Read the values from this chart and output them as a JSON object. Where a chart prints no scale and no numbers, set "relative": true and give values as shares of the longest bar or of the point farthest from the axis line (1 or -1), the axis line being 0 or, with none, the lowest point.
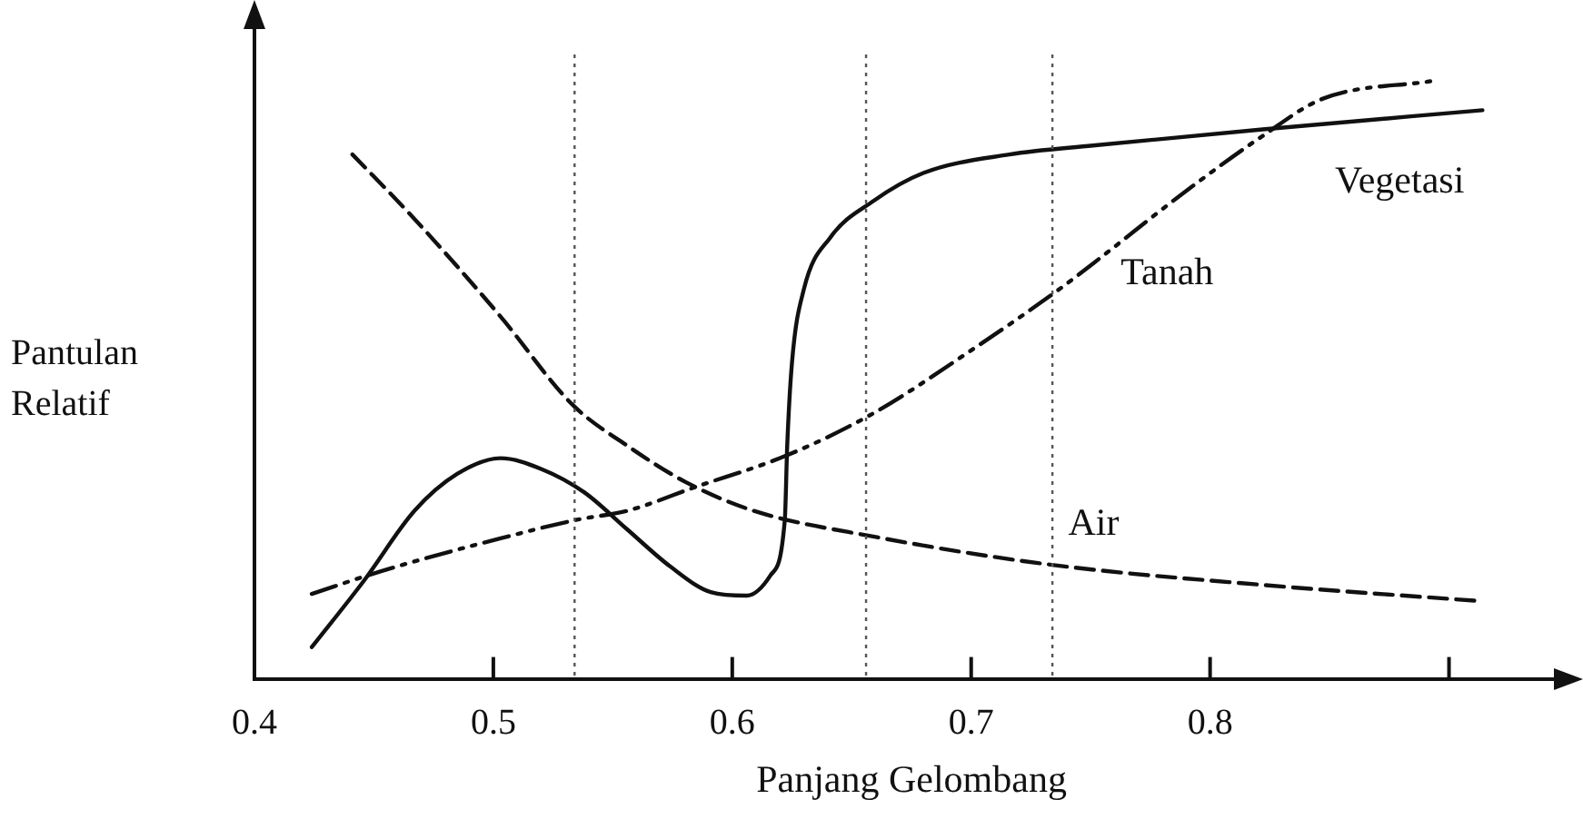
{
  "chart_data": {
    "type": "line",
    "relative": true,
    "xlabel": "Panjang Gelombang",
    "ylabel": "Pantulan Relatif",
    "xlim": [
      0.4,
      0.95
    ],
    "xticks": [
      0.4,
      0.5,
      0.6,
      0.7,
      0.8,
      {
        "value": 0.9,
        "label": null
      }
    ],
    "tick_labels": "x",
    "grid": false,
    "legend": false,
    "marker": "none",
    "ref_lines": [
      {
        "axis": "x",
        "value": 0.534,
        "color": "#555555",
        "line_style": "dotted"
      },
      {
        "axis": "x",
        "value": 0.656,
        "color": "#555555",
        "line_style": "dotted"
      },
      {
        "axis": "x",
        "value": 0.734,
        "color": "#555555",
        "line_style": "dotted"
      }
    ],
    "series": [
      {
        "name": "Vegetasi",
        "color": "#111111",
        "line_style": "solid",
        "x": [
          0.424,
          0.446,
          0.467,
          0.485,
          0.503,
          0.52,
          0.538,
          0.556,
          0.574,
          0.591,
          0.606,
          0.616,
          0.622,
          0.623,
          0.625,
          0.63,
          0.641,
          0.659,
          0.68,
          0.716,
          0.751,
          0.822,
          0.914
        ],
        "values": [
          0.053,
          0.165,
          0.281,
          0.343,
          0.369,
          0.351,
          0.312,
          0.25,
          0.188,
          0.145,
          0.139,
          0.173,
          0.266,
          0.39,
          0.529,
          0.652,
          0.738,
          0.799,
          0.846,
          0.877,
          0.892,
          0.919,
          0.951
        ]
      },
      {
        "name": "Tanah",
        "color": "#111111",
        "line_style": "dashdot",
        "x": [
          0.424,
          0.453,
          0.503,
          0.535,
          0.556,
          0.584,
          0.623,
          0.659,
          0.698,
          0.737,
          0.755,
          0.787,
          0.822,
          0.847,
          0.893
        ],
        "values": [
          0.142,
          0.18,
          0.235,
          0.266,
          0.281,
          0.32,
          0.374,
          0.444,
          0.544,
          0.652,
          0.707,
          0.807,
          0.908,
          0.97,
          1.0
        ]
      },
      {
        "name": "Air",
        "color": "#111111",
        "line_style": "dashed",
        "x": [
          0.441,
          0.467,
          0.503,
          0.533,
          0.556,
          0.581,
          0.609,
          0.659,
          0.733,
          0.822,
          0.913
        ],
        "values": [
          0.877,
          0.769,
          0.606,
          0.459,
          0.39,
          0.328,
          0.281,
          0.238,
          0.191,
          0.157,
          0.13
        ]
      }
    ]
  }
}
